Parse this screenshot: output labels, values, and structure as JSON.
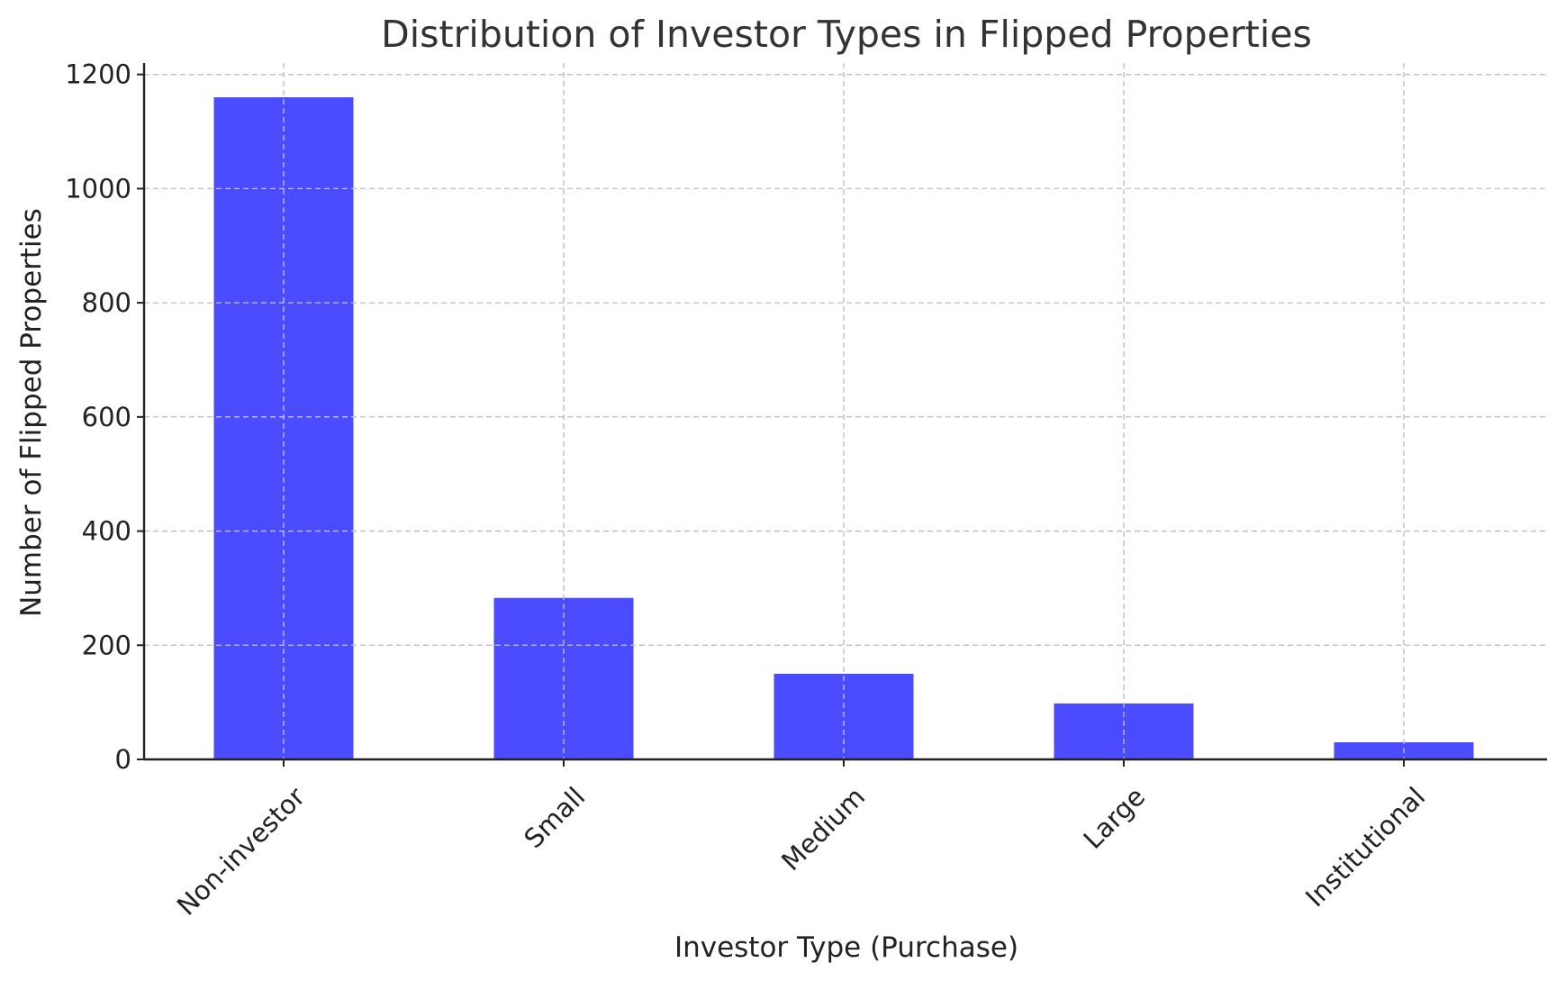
{
  "chart_data": {
    "type": "bar",
    "title": "Distribution of Investor Types in Flipped Properties",
    "xlabel": "Investor Type (Purchase)",
    "ylabel": "Number of Flipped Properties",
    "categories": [
      "Non-investor",
      "Small",
      "Medium",
      "Large",
      "Institutional"
    ],
    "values": [
      1160,
      283,
      150,
      98,
      30
    ],
    "ylim": [
      0,
      1220
    ],
    "yticks": [
      0,
      200,
      400,
      600,
      800,
      1000,
      1200
    ],
    "grid": true,
    "bar_color": "#4b4bff",
    "legend": "none"
  }
}
